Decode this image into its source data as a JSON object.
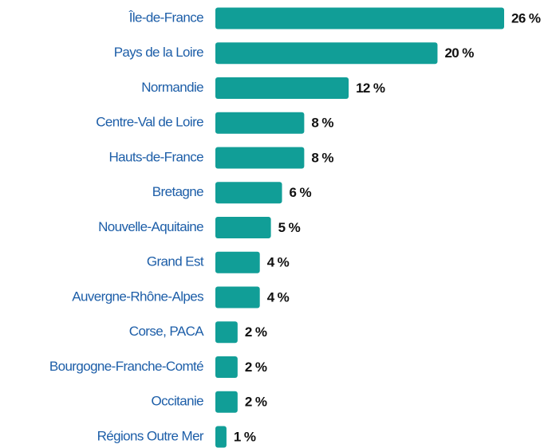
{
  "chart_data": {
    "type": "barh",
    "categories": [
      "Île-de-France",
      "Pays de la Loire",
      "Normandie",
      "Centre-Val de Loire",
      "Hauts-de-France",
      "Bretagne",
      "Nouvelle-Aquitaine",
      "Grand Est",
      "Auvergne-Rhône-Alpes",
      "Corse, PACA",
      "Bourgogne-Franche-Comté",
      "Occitanie",
      "Régions Outre Mer"
    ],
    "values": [
      26,
      20,
      12,
      8,
      8,
      6,
      5,
      4,
      4,
      2,
      2,
      2,
      1
    ],
    "value_labels": [
      "26 %",
      "20 %",
      "12 %",
      "8 %",
      "8 %",
      "6 %",
      "5 %",
      "4 %",
      "4 %",
      "2 %",
      "2 %",
      "2 %",
      "1 %"
    ],
    "color": "#119e97"
  }
}
